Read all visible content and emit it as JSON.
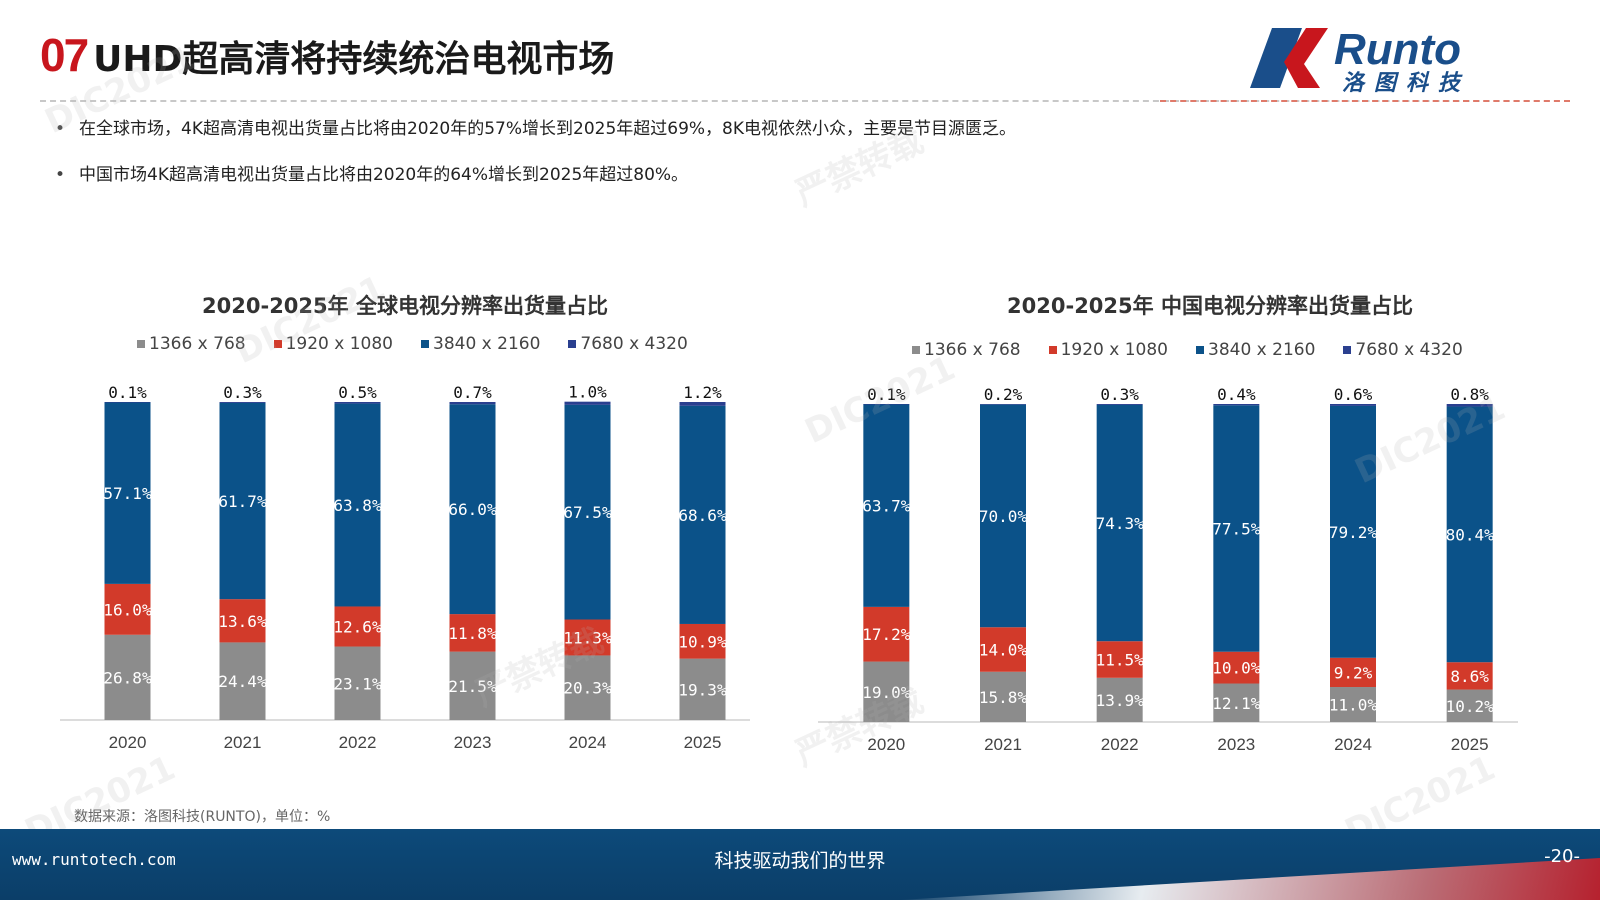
{
  "header": {
    "number": "07",
    "title": "UHD超高清将持续统治电视市场",
    "logo_text": "Runto",
    "logo_cn": "洛图科技"
  },
  "bullets": [
    "在全球市场，4K超高清电视出货量占比将由2020年的57%增长到2025年超过69%，8K电视依然小众，主要是节目源匮乏。",
    "中国市场4K超高清电视出货量占比将由2020年的64%增长到2025年超过80%。"
  ],
  "colors": {
    "res_1366": "#8c8c8c",
    "res_1920": "#d23a2a",
    "res_3840": "#0b5289",
    "res_7680": "#2a3f8f"
  },
  "chart_data": [
    {
      "type": "bar",
      "stacked": true,
      "title": "2020-2025年  全球电视分辨率出货量占比",
      "categories": [
        "2020",
        "2021",
        "2022",
        "2023",
        "2024",
        "2025"
      ],
      "series": [
        {
          "name": "1366  x  768",
          "values": [
            26.8,
            24.4,
            23.1,
            21.5,
            20.3,
            19.3
          ],
          "labels": [
            "26.8%",
            "24.4%",
            "23.1%",
            "21.5%",
            "20.3%",
            "19.3%"
          ]
        },
        {
          "name": "1920  x  1080",
          "values": [
            16.0,
            13.6,
            12.6,
            11.8,
            11.3,
            10.9
          ],
          "labels": [
            "16.0%",
            "13.6%",
            "12.6%",
            "11.8%",
            "11.3%",
            "10.9%"
          ]
        },
        {
          "name": "3840  x  2160",
          "values": [
            57.1,
            61.7,
            63.8,
            66.0,
            67.5,
            68.6
          ],
          "labels": [
            "57.1%",
            "61.7%",
            "63.8%",
            "66.0%",
            "67.5%",
            "68.6%"
          ]
        },
        {
          "name": "7680  x  4320",
          "values": [
            0.1,
            0.3,
            0.5,
            0.7,
            1.0,
            1.2
          ],
          "labels": [
            "0.1%",
            "0.3%",
            "0.5%",
            "0.7%",
            "1.0%",
            "1.2%"
          ]
        }
      ],
      "ylim": [
        0,
        100
      ],
      "legend": "top"
    },
    {
      "type": "bar",
      "stacked": true,
      "title": "2020-2025年  中国电视分辨率出货量占比",
      "categories": [
        "2020",
        "2021",
        "2022",
        "2023",
        "2024",
        "2025"
      ],
      "series": [
        {
          "name": "1366  x  768",
          "values": [
            19.0,
            15.8,
            13.9,
            12.1,
            11.0,
            10.2
          ],
          "labels": [
            "19.0%",
            "15.8%",
            "13.9%",
            "12.1%",
            "11.0%",
            "10.2%"
          ]
        },
        {
          "name": "1920  x  1080",
          "values": [
            17.2,
            14.0,
            11.5,
            10.0,
            9.2,
            8.6
          ],
          "labels": [
            "17.2%",
            "14.0%",
            "11.5%",
            "10.0%",
            "9.2%",
            "8.6%"
          ]
        },
        {
          "name": "3840  x  2160",
          "values": [
            63.7,
            70.0,
            74.3,
            77.5,
            79.2,
            80.4
          ],
          "labels": [
            "63.7%",
            "70.0%",
            "74.3%",
            "77.5%",
            "79.2%",
            "80.4%"
          ]
        },
        {
          "name": "7680  x  4320",
          "values": [
            0.1,
            0.2,
            0.3,
            0.4,
            0.6,
            0.8
          ],
          "labels": [
            "0.1%",
            "0.2%",
            "0.3%",
            "0.4%",
            "0.6%",
            "0.8%"
          ]
        }
      ],
      "ylim": [
        0,
        100
      ],
      "legend": "top"
    }
  ],
  "source": "数据来源：洛图科技(RUNTO)，单位：%",
  "footer": {
    "url": "www.runtotech.com",
    "slogan": "科技驱动我们的世界",
    "page": "-20-"
  },
  "watermark": [
    "DIC2021",
    "严禁转载"
  ]
}
